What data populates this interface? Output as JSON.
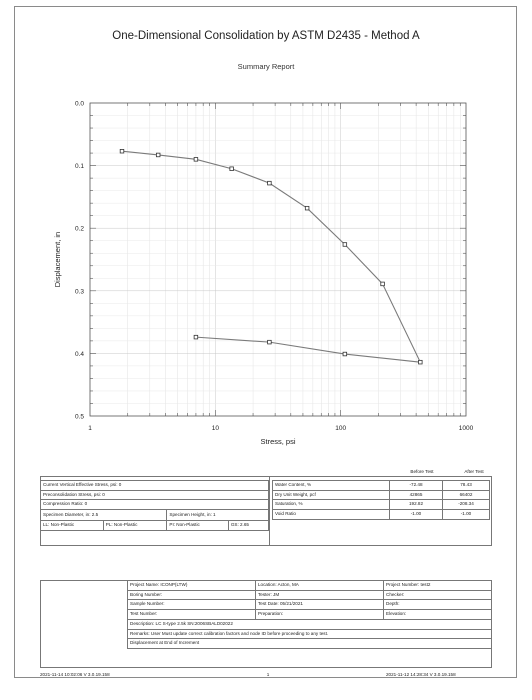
{
  "report": {
    "title": "One-Dimensional Consolidation by ASTM D2435 - Method A",
    "subtitle": "Summary Report"
  },
  "chart_data": {
    "type": "line",
    "xscale": "log",
    "xlim": [
      1,
      1000
    ],
    "ylim": [
      0.0,
      0.5
    ],
    "y_inverted": true,
    "xlabel": "Stress, psi",
    "ylabel": "Displacement, in",
    "x_tick_labels": [
      "1",
      "10",
      "100",
      "1000"
    ],
    "y_tick_labels": [
      "0.0",
      "0.1",
      "0.2",
      "0.3",
      "0.4",
      "0.5"
    ],
    "grid": true,
    "series": [
      {
        "color": "#7a7a7a",
        "x": [
          1.8,
          3.5,
          7.0,
          13.5,
          27,
          54,
          108,
          216,
          432,
          108,
          27,
          7.0
        ],
        "y": [
          0.077,
          0.083,
          0.09,
          0.105,
          0.128,
          0.168,
          0.226,
          0.289,
          0.414,
          0.401,
          0.382,
          0.374
        ]
      }
    ]
  },
  "properties": {
    "before_label": "Before Test",
    "after_label": "After Test",
    "left_rows": [
      "Current Vertical Effective Stress, psi: 0",
      "Preconsolidation Stress, psi: 0",
      "Compression Ratio: 0"
    ],
    "diameter": "Specimen Diameter, in: 2.5",
    "height": "Specimen Height, in: 1",
    "ll": "LL: Non-Plastic",
    "pl": "PL: Non-Plastic",
    "pi": "PI: Non-Plastic",
    "gs": "GS: 2.65",
    "right_rows": [
      {
        "label": "Water Content, %",
        "before": "-72.48",
        "after": "78.43"
      },
      {
        "label": "Dry Unit Weight, pcf",
        "before": "42865",
        "after": "66402"
      },
      {
        "label": "Saturation, %",
        "before": "192.82",
        "after": "-208.34"
      },
      {
        "label": "Void Ratio",
        "before": "-1.00",
        "after": "-1.00"
      }
    ]
  },
  "project": {
    "name": "Project Name: ICONP(LTW)",
    "location": "Location: Acton, MA",
    "number": "Project Number: test2",
    "boring": "Boring Number:",
    "tester": "Tester: JM",
    "checker": "Checker:",
    "sample": "Sample Number:",
    "test_date": "Test Date: 05/21/2021",
    "depth": "Depth:",
    "test_number": "Test Number:",
    "preparation": "Preparation:",
    "elevation": "Elevation:",
    "description": "Description:  LC S-type 2.5k SN:2006SBALD02022",
    "remarks": "Remarks: User Must update correct calibration factors and node ID before proceeding to any test.",
    "displacement": "Displacement at End of Increment"
  },
  "footer": {
    "left": "2021-11-14 10:02:06  V 3.0.19.158",
    "center": "1",
    "right": "2021-11-12 14:28:34  V 3.0.19.158"
  }
}
